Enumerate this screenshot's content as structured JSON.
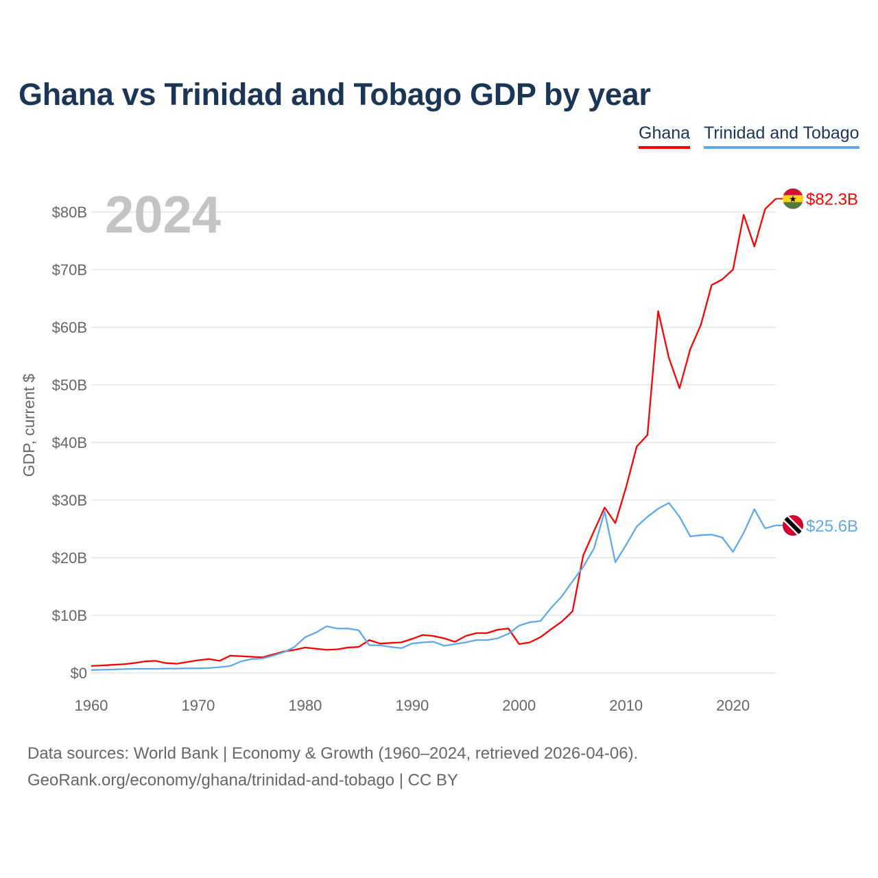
{
  "title": "Ghana vs Trinidad and Tobago GDP by year",
  "footer": {
    "line1": "Data sources: World Bank | Economy & Growth (1960–2024, retrieved 2026-04-06).",
    "line2": "GeoRank.org/economy/ghana/trinidad-and-tobago | CC BY"
  },
  "chart_data": {
    "type": "line",
    "title": "Ghana vs Trinidad and Tobago GDP by year",
    "xlabel": "",
    "ylabel": "GDP, current $",
    "year_watermark": "2024",
    "xlim": [
      1960,
      2024
    ],
    "ylim": [
      0,
      80
    ],
    "x_ticks": [
      "1960",
      "1970",
      "1980",
      "1990",
      "2000",
      "2010",
      "2020"
    ],
    "y_ticks": [
      "$0",
      "$10B",
      "$20B",
      "$30B",
      "$40B",
      "$50B",
      "$60B",
      "$70B",
      "$80B"
    ],
    "legend_position": "top-right",
    "grid": true,
    "x_start": 1960,
    "series": [
      {
        "name": "Ghana",
        "color": "#ff0000",
        "end_label": "$82.3B",
        "flag": "ghana-flag",
        "values": [
          1.2,
          1.3,
          1.4,
          1.5,
          1.7,
          2.0,
          2.1,
          1.7,
          1.6,
          1.9,
          2.2,
          2.4,
          2.1,
          3.0,
          2.9,
          2.8,
          2.7,
          3.2,
          3.7,
          4.0,
          4.4,
          4.2,
          4.0,
          4.1,
          4.4,
          4.5,
          5.7,
          5.1,
          5.2,
          5.3,
          5.9,
          6.6,
          6.4,
          6.0,
          5.4,
          6.4,
          6.9,
          6.9,
          7.5,
          7.7,
          5.0,
          5.3,
          6.2,
          7.6,
          8.9,
          10.7,
          20.4,
          24.6,
          28.7,
          26.0,
          32.2,
          39.3,
          41.3,
          62.8,
          54.7,
          49.4,
          56.2,
          60.4,
          67.3,
          68.3,
          70.0,
          79.5,
          74.0,
          80.5,
          82.3
        ]
      },
      {
        "name": "Trinidad and Tobago",
        "color": "#5ea8ed",
        "end_label": "$25.6B",
        "flag": "trinidad-flag",
        "values": [
          0.5,
          0.55,
          0.6,
          0.65,
          0.7,
          0.7,
          0.7,
          0.75,
          0.75,
          0.8,
          0.8,
          0.85,
          1.0,
          1.2,
          2.0,
          2.4,
          2.5,
          3.0,
          3.6,
          4.5,
          6.2,
          7.0,
          8.1,
          7.7,
          7.7,
          7.4,
          4.8,
          4.8,
          4.5,
          4.3,
          5.1,
          5.3,
          5.4,
          4.7,
          5.0,
          5.3,
          5.7,
          5.7,
          6.0,
          6.8,
          8.2,
          8.8,
          9.0,
          11.3,
          13.3,
          15.9,
          18.4,
          21.6,
          28.0,
          19.2,
          22.2,
          25.4,
          27.1,
          28.5,
          29.5,
          27.1,
          23.7,
          23.9,
          24.0,
          23.5,
          21.0,
          24.3,
          28.4,
          25.1,
          25.6
        ]
      }
    ]
  }
}
